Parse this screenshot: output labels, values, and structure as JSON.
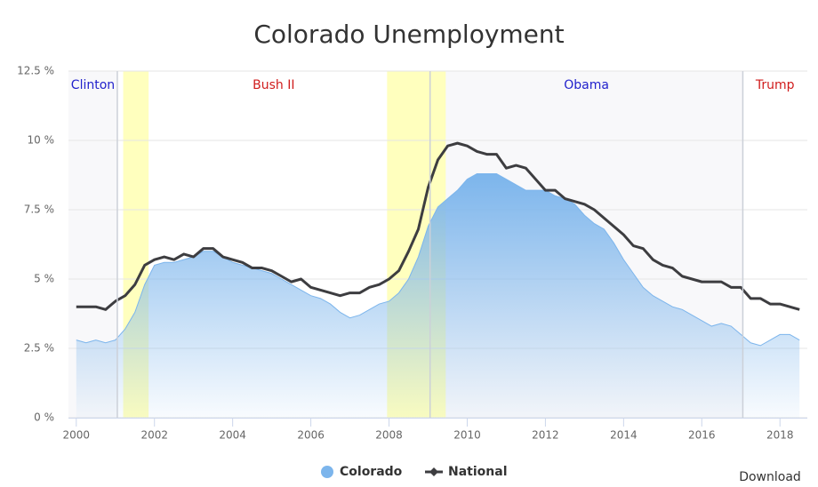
{
  "chart_data": {
    "type": "area-line",
    "title": "Colorado Unemployment",
    "x": [
      2000,
      2000.25,
      2000.5,
      2000.75,
      2001,
      2001.25,
      2001.5,
      2001.75,
      2002,
      2002.25,
      2002.5,
      2002.75,
      2003,
      2003.25,
      2003.5,
      2003.75,
      2004,
      2004.25,
      2004.5,
      2004.75,
      2005,
      2005.25,
      2005.5,
      2005.75,
      2006,
      2006.25,
      2006.5,
      2006.75,
      2007,
      2007.25,
      2007.5,
      2007.75,
      2008,
      2008.25,
      2008.5,
      2008.75,
      2009,
      2009.25,
      2009.5,
      2009.75,
      2010,
      2010.25,
      2010.5,
      2010.75,
      2011,
      2011.25,
      2011.5,
      2011.75,
      2012,
      2012.25,
      2012.5,
      2012.75,
      2013,
      2013.25,
      2013.5,
      2013.75,
      2014,
      2014.25,
      2014.5,
      2014.75,
      2015,
      2015.25,
      2015.5,
      2015.75,
      2016,
      2016.25,
      2016.5,
      2016.75,
      2017,
      2017.25,
      2017.5,
      2017.75,
      2018,
      2018.25,
      2018.5
    ],
    "series": [
      {
        "name": "Colorado",
        "color": "#7cb5ec",
        "style": "area",
        "values": [
          2.8,
          2.7,
          2.8,
          2.7,
          2.8,
          3.2,
          3.8,
          4.8,
          5.5,
          5.6,
          5.6,
          5.7,
          5.8,
          6.0,
          6.0,
          5.8,
          5.6,
          5.5,
          5.4,
          5.3,
          5.2,
          5.0,
          4.8,
          4.6,
          4.4,
          4.3,
          4.1,
          3.8,
          3.6,
          3.7,
          3.9,
          4.1,
          4.2,
          4.5,
          5.0,
          5.8,
          6.9,
          7.6,
          7.9,
          8.2,
          8.6,
          8.8,
          8.8,
          8.8,
          8.6,
          8.4,
          8.2,
          8.2,
          8.2,
          8.0,
          7.9,
          7.7,
          7.3,
          7.0,
          6.8,
          6.3,
          5.7,
          5.2,
          4.7,
          4.4,
          4.2,
          4.0,
          3.9,
          3.7,
          3.5,
          3.3,
          3.4,
          3.3,
          3.0,
          2.7,
          2.6,
          2.8,
          3.0,
          3.0,
          2.8
        ]
      },
      {
        "name": "National",
        "color": "#3d3d40",
        "style": "line",
        "values": [
          4.0,
          4.0,
          4.0,
          3.9,
          4.2,
          4.4,
          4.8,
          5.5,
          5.7,
          5.8,
          5.7,
          5.9,
          5.8,
          6.1,
          6.1,
          5.8,
          5.7,
          5.6,
          5.4,
          5.4,
          5.3,
          5.1,
          4.9,
          5.0,
          4.7,
          4.6,
          4.5,
          4.4,
          4.5,
          4.5,
          4.7,
          4.8,
          5.0,
          5.3,
          6.0,
          6.8,
          8.3,
          9.3,
          9.8,
          9.9,
          9.8,
          9.6,
          9.5,
          9.5,
          9.0,
          9.1,
          9.0,
          8.6,
          8.2,
          8.2,
          7.9,
          7.8,
          7.7,
          7.5,
          7.2,
          6.9,
          6.6,
          6.2,
          6.1,
          5.7,
          5.5,
          5.4,
          5.1,
          5.0,
          4.9,
          4.9,
          4.9,
          4.7,
          4.7,
          4.3,
          4.3,
          4.1,
          4.1,
          4.0,
          3.9
        ]
      }
    ],
    "xlim": [
      1999.8,
      2018.7
    ],
    "xticks": [
      2000,
      2002,
      2004,
      2006,
      2008,
      2010,
      2012,
      2014,
      2016,
      2018
    ],
    "ylim": [
      0,
      12.5
    ],
    "yticks": [
      {
        "value": 0,
        "label": "0 %"
      },
      {
        "value": 2.5,
        "label": "2.5 %"
      },
      {
        "value": 5,
        "label": "5 %"
      },
      {
        "value": 7.5,
        "label": "7.5 %"
      },
      {
        "value": 10,
        "label": "10 %"
      },
      {
        "value": 12.5,
        "label": "12.5 %"
      }
    ],
    "grid": true,
    "presidency_changes": [
      2001.05,
      2009.05,
      2017.05
    ],
    "presidencies": [
      {
        "label": "Clinton",
        "color": "#2222cc"
      },
      {
        "label": "Bush II",
        "color": "#d01c1c"
      },
      {
        "label": "Obama",
        "color": "#2222cc"
      },
      {
        "label": "Trump",
        "color": "#d01c1c"
      }
    ],
    "recessions": [
      [
        2001.2,
        2001.85
      ],
      [
        2007.95,
        2009.45
      ]
    ],
    "recession_color": "#ffffbe",
    "legend": "bottom",
    "download": "Download"
  }
}
